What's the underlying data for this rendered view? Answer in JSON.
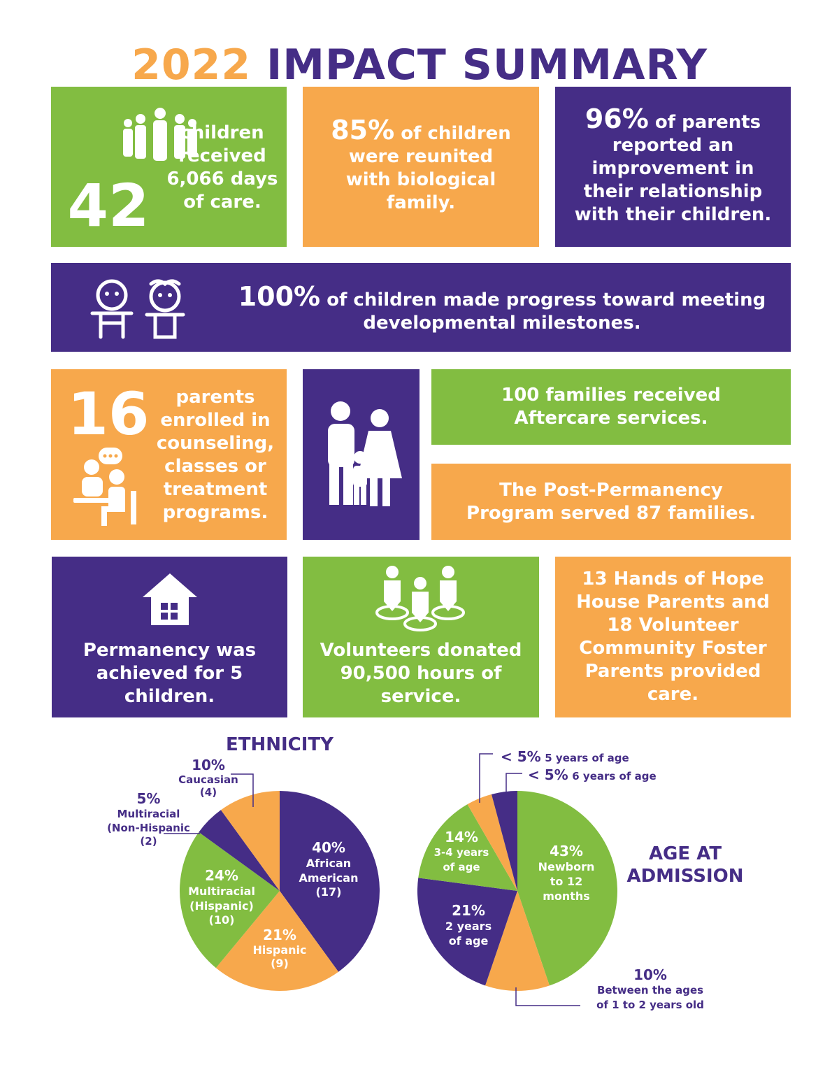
{
  "title": {
    "year": "2022",
    "rest": "IMPACT SUMMARY"
  },
  "stats": {
    "children_number": "42",
    "children_text": "children received 6,066 days of care.",
    "reunited_pct": "85%",
    "reunited_text": "of children were reunited with biological family.",
    "parents_pct": "96%",
    "parents_text_1": "of parents",
    "parents_text_2": "reported an improvement in their relationship with their children.",
    "milestones_pct": "100%",
    "milestones_text_1": "of children made progress toward meeting",
    "milestones_text_2": "developmental milestones.",
    "enrolled_number": "16",
    "enrolled_text": "parents enrolled in counseling, classes or treatment programs.",
    "aftercare_text": "100 families received Aftercare services.",
    "postperm_text": "The Post-Permanency Program served 87 families.",
    "permanency_text": "Permanency was achieved for 5 children.",
    "volunteers_text": "Volunteers donated 90,500 hours of service.",
    "foster_text": "13 Hands of Hope House Parents and 18 Volunteer Community Foster Parents provided care."
  },
  "icons": [
    "people-group-icon",
    "babies-icon",
    "counseling-icon",
    "family-icon",
    "house-icon",
    "volunteers-icon"
  ],
  "colors": {
    "green": "#82bd41",
    "orange": "#f7a84c",
    "purple": "#452d86"
  },
  "chart_data": [
    {
      "type": "pie",
      "title": "ETHNICITY",
      "slices": [
        {
          "pct": "40%",
          "label": "African American",
          "count": "(17)",
          "value": 40,
          "color": "#452d86"
        },
        {
          "pct": "21%",
          "label": "Hispanic",
          "count": "(9)",
          "value": 21,
          "color": "#f7a84c"
        },
        {
          "pct": "24%",
          "label": "Multiracial (Hispanic)",
          "count": "(10)",
          "value": 24,
          "color": "#82bd41"
        },
        {
          "pct": "5%",
          "label": "Multiracial (Non-Hispanic",
          "count": "(2)",
          "value": 5,
          "color": "#452d86"
        },
        {
          "pct": "10%",
          "label": "Caucasian",
          "count": "(4)",
          "value": 10,
          "color": "#f7a84c"
        }
      ]
    },
    {
      "type": "pie",
      "title": "AGE AT ADMISSION",
      "slices": [
        {
          "pct": "43%",
          "label": "Newborn to 12 months",
          "value": 43,
          "color": "#82bd41"
        },
        {
          "pct": "10%",
          "label": "Between the ages of 1 to 2 years old",
          "value": 10,
          "color": "#f7a84c"
        },
        {
          "pct": "21%",
          "label": "2 years of age",
          "value": 21,
          "color": "#452d86"
        },
        {
          "pct": "14%",
          "label": "3-4 years of age",
          "value": 14,
          "color": "#82bd41"
        },
        {
          "pct": "< 5%",
          "label": "5 years of age",
          "value": 4,
          "color": "#f7a84c"
        },
        {
          "pct": "< 5%",
          "label": "6 years of age",
          "value": 4,
          "color": "#452d86"
        }
      ]
    }
  ]
}
